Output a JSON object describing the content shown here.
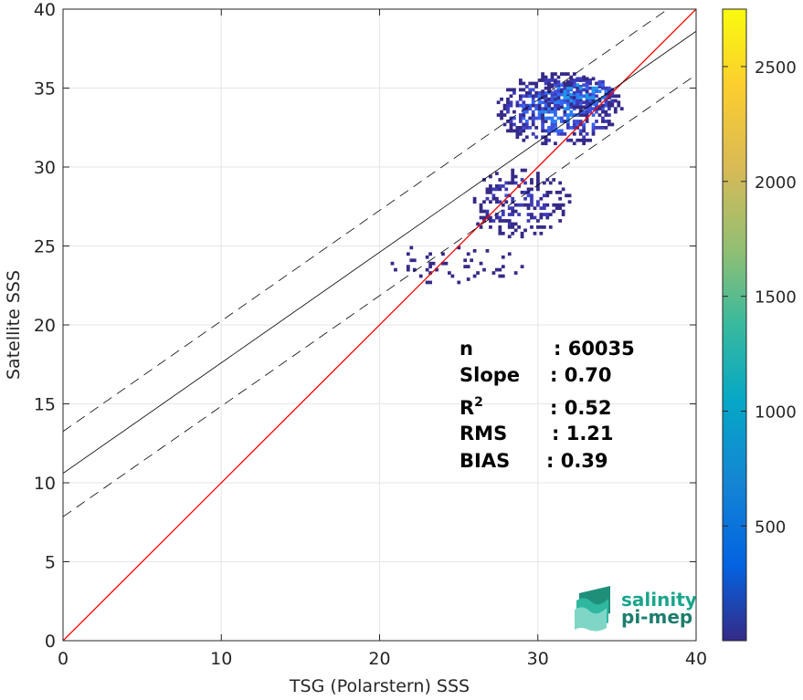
{
  "chart_data": {
    "type": "scatter",
    "subtype": "2d-density-histogram",
    "xlabel": "TSG (Polarstern) SSS",
    "ylabel": "Satellite SSS",
    "xlim": [
      0,
      40
    ],
    "ylim": [
      0,
      40
    ],
    "xticks": [
      0,
      10,
      20,
      30,
      40
    ],
    "yticks": [
      0,
      5,
      10,
      15,
      20,
      25,
      30,
      35,
      40
    ],
    "grid": true,
    "colormap": "parula",
    "colorbar": {
      "range": [
        1,
        2750
      ],
      "ticks": [
        500,
        1000,
        1500,
        2000,
        2500
      ]
    },
    "lines": [
      {
        "role": "one-to-one",
        "color": "#ff0000",
        "style": "solid",
        "points": [
          [
            0,
            0
          ],
          [
            40,
            40
          ]
        ]
      },
      {
        "role": "regression",
        "color": "#000000",
        "style": "solid",
        "slope": 0.7,
        "intercept": 10.6
      },
      {
        "role": "regression-upper",
        "color": "#000000",
        "style": "dashed",
        "slope": 0.7,
        "intercept": 13.25
      },
      {
        "role": "regression-lower",
        "color": "#000000",
        "style": "dashed",
        "slope": 0.7,
        "intercept": 7.85
      }
    ],
    "density_clusters": [
      {
        "x_range": [
          27.2,
          35.3
        ],
        "y_range": [
          31.2,
          35.9
        ],
        "peak": 600
      },
      {
        "x_range": [
          30.0,
          35.2
        ],
        "y_range": [
          33.5,
          35.6
        ],
        "peak": 950
      },
      {
        "x_range": [
          25.5,
          32.0
        ],
        "y_range": [
          25.3,
          29.8
        ],
        "peak": 250
      },
      {
        "x_range": [
          20.5,
          29.0
        ],
        "y_range": [
          22.4,
          25.2
        ],
        "peak": 100
      }
    ],
    "stats": [
      {
        "label": "n",
        "value": ": 60035"
      },
      {
        "label": "Slope",
        "value": ": 0.70"
      },
      {
        "label": "R",
        "sup": "2",
        "value": ": 0.52"
      },
      {
        "label": "RMS",
        "value": ": 1.21"
      },
      {
        "label": "BIAS",
        "value": ": 0.39"
      }
    ]
  },
  "logo": {
    "line1": "salinity",
    "line2": "pi-mep",
    "colors": {
      "text": "#1aa58c",
      "icon": "#2fb7a0"
    }
  }
}
